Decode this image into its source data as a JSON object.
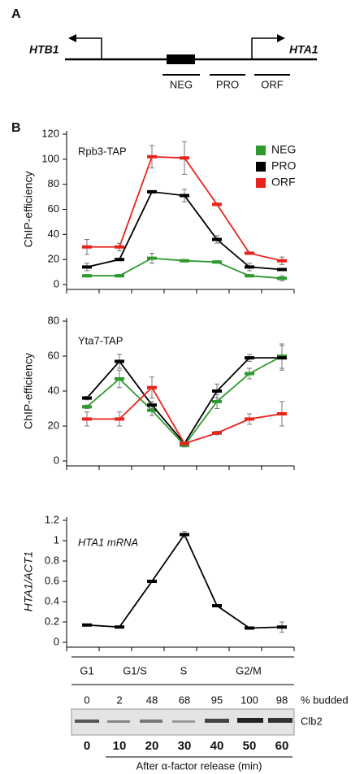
{
  "panel_a": {
    "label": "A",
    "gene_left": "HTB1",
    "gene_right": "HTA1",
    "regions": [
      "NEG",
      "PRO",
      "ORF"
    ]
  },
  "panel_b_label": "B",
  "chart_data": [
    {
      "type": "line",
      "title": "Rpb3-TAP",
      "y_label": "ChIP-efficiency",
      "ylim": [
        0,
        120
      ],
      "yticks": [
        0,
        20,
        40,
        60,
        80,
        100,
        120
      ],
      "legend": "top-right",
      "series": [
        {
          "name": "NEG",
          "color": "#2e9a2e",
          "values": [
            7,
            7,
            21,
            19,
            18,
            7,
            5
          ],
          "errors": [
            1,
            1,
            4,
            1,
            1,
            1,
            2
          ]
        },
        {
          "name": "PRO",
          "color": "#000000",
          "values": [
            14,
            20,
            74,
            71,
            36,
            14,
            12
          ],
          "errors": [
            3,
            1,
            1,
            5,
            3,
            3,
            1
          ]
        },
        {
          "name": "ORF",
          "color": "#e8231c",
          "values": [
            30,
            30,
            102,
            101,
            64,
            25,
            19
          ],
          "errors": [
            6,
            3,
            9,
            13,
            1,
            1,
            3
          ]
        }
      ]
    },
    {
      "type": "line",
      "title": "Yta7-TAP",
      "y_label": "ChIP-efficiency",
      "ylim": [
        0,
        80
      ],
      "yticks": [
        0,
        20,
        40,
        60,
        80
      ],
      "series": [
        {
          "color": "#2e9a2e",
          "values": [
            31,
            47,
            29,
            9,
            34,
            50,
            60
          ],
          "errors": [
            1,
            5,
            3,
            1,
            4,
            3,
            7
          ]
        },
        {
          "color": "#000000",
          "values": [
            36,
            57,
            32,
            10,
            40,
            59,
            59
          ],
          "errors": [
            1,
            4,
            2,
            1,
            4,
            2,
            7
          ]
        },
        {
          "color": "#e8231c",
          "values": [
            24,
            24,
            42,
            10,
            16,
            24,
            27
          ],
          "errors": [
            4,
            4,
            6,
            1,
            1,
            3,
            7
          ]
        }
      ]
    },
    {
      "type": "line",
      "title": "HTA1 mRNA",
      "y_label": "HTA1/ACT1",
      "ylim": [
        0,
        1.2
      ],
      "yticks": [
        0,
        0.2,
        0.4,
        0.6,
        0.8,
        1,
        1.2
      ],
      "categories": [
        0,
        10,
        20,
        30,
        40,
        50,
        60
      ],
      "x_label": "After α-factor release (min)",
      "series": [
        {
          "color": "#000000",
          "values": [
            0.17,
            0.15,
            0.6,
            1.06,
            0.36,
            0.14,
            0.15
          ],
          "errors": [
            0.01,
            0.01,
            0.01,
            0.03,
            0.01,
            0.01,
            0.05
          ]
        }
      ]
    }
  ],
  "phases": [
    "G1",
    "G1/S",
    "S",
    "G2/M"
  ],
  "budded": {
    "label": "% budded",
    "values": [
      0,
      2,
      48,
      68,
      95,
      100,
      98
    ]
  },
  "blot_label": "Clb2"
}
